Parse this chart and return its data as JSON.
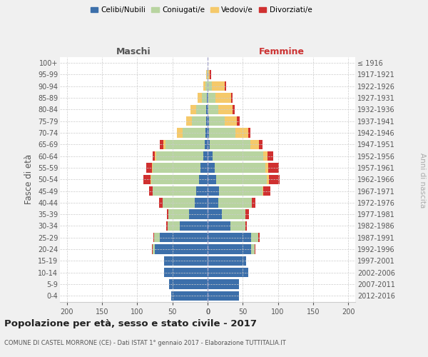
{
  "age_groups": [
    "0-4",
    "5-9",
    "10-14",
    "15-19",
    "20-24",
    "25-29",
    "30-34",
    "35-39",
    "40-44",
    "45-49",
    "50-54",
    "55-59",
    "60-64",
    "65-69",
    "70-74",
    "75-79",
    "80-84",
    "85-89",
    "90-94",
    "95-99",
    "100+"
  ],
  "birth_years": [
    "2012-2016",
    "2007-2011",
    "2002-2006",
    "1997-2001",
    "1992-1996",
    "1987-1991",
    "1982-1986",
    "1977-1981",
    "1972-1976",
    "1967-1971",
    "1962-1966",
    "1957-1961",
    "1952-1956",
    "1947-1951",
    "1942-1946",
    "1937-1941",
    "1932-1936",
    "1927-1931",
    "1922-1926",
    "1917-1921",
    "≤ 1916"
  ],
  "male": {
    "celibi": [
      52,
      55,
      62,
      62,
      75,
      68,
      40,
      26,
      18,
      16,
      12,
      10,
      6,
      4,
      3,
      2,
      2,
      1,
      0,
      0,
      0
    ],
    "coniugati": [
      0,
      0,
      0,
      0,
      3,
      8,
      17,
      30,
      46,
      62,
      68,
      68,
      67,
      56,
      33,
      20,
      14,
      7,
      3,
      1,
      0
    ],
    "vedovi": [
      0,
      0,
      0,
      0,
      0,
      0,
      0,
      0,
      0,
      0,
      1,
      1,
      2,
      3,
      8,
      8,
      8,
      6,
      3,
      1,
      0
    ],
    "divorziati": [
      0,
      0,
      0,
      0,
      1,
      1,
      2,
      2,
      5,
      5,
      10,
      8,
      3,
      5,
      0,
      0,
      0,
      0,
      0,
      0,
      0
    ]
  },
  "female": {
    "nubili": [
      45,
      45,
      58,
      55,
      62,
      62,
      32,
      20,
      15,
      16,
      12,
      10,
      7,
      3,
      2,
      2,
      1,
      1,
      0,
      0,
      0
    ],
    "coniugate": [
      0,
      0,
      0,
      0,
      5,
      10,
      22,
      34,
      48,
      62,
      72,
      72,
      72,
      58,
      38,
      22,
      14,
      10,
      6,
      1,
      0
    ],
    "vedove": [
      0,
      0,
      0,
      0,
      0,
      0,
      0,
      0,
      0,
      1,
      3,
      4,
      6,
      12,
      18,
      18,
      20,
      22,
      18,
      2,
      0
    ],
    "divorziate": [
      0,
      0,
      0,
      0,
      1,
      2,
      2,
      5,
      5,
      10,
      15,
      15,
      8,
      5,
      3,
      4,
      4,
      2,
      2,
      2,
      0
    ]
  },
  "colors": {
    "celibi": "#3c6faa",
    "coniugati": "#b8d4a0",
    "vedovi": "#f5c96a",
    "divorziati": "#d03030"
  },
  "xlim": 210,
  "title": "Popolazione per età, sesso e stato civile - 2017",
  "subtitle": "COMUNE DI CASTEL MORRONE (CE) - Dati ISTAT 1° gennaio 2017 - Elaborazione TUTTITALIA.IT",
  "ylabel_left": "Fasce di età",
  "ylabel_right": "Anni di nascita",
  "xlabel_left": "Maschi",
  "xlabel_right": "Femmine",
  "legend_labels": [
    "Celibi/Nubili",
    "Coniugati/e",
    "Vedovi/e",
    "Divorziati/e"
  ],
  "bg_color": "#f0f0f0",
  "plot_bg": "#ffffff",
  "grid_color": "#cccccc"
}
